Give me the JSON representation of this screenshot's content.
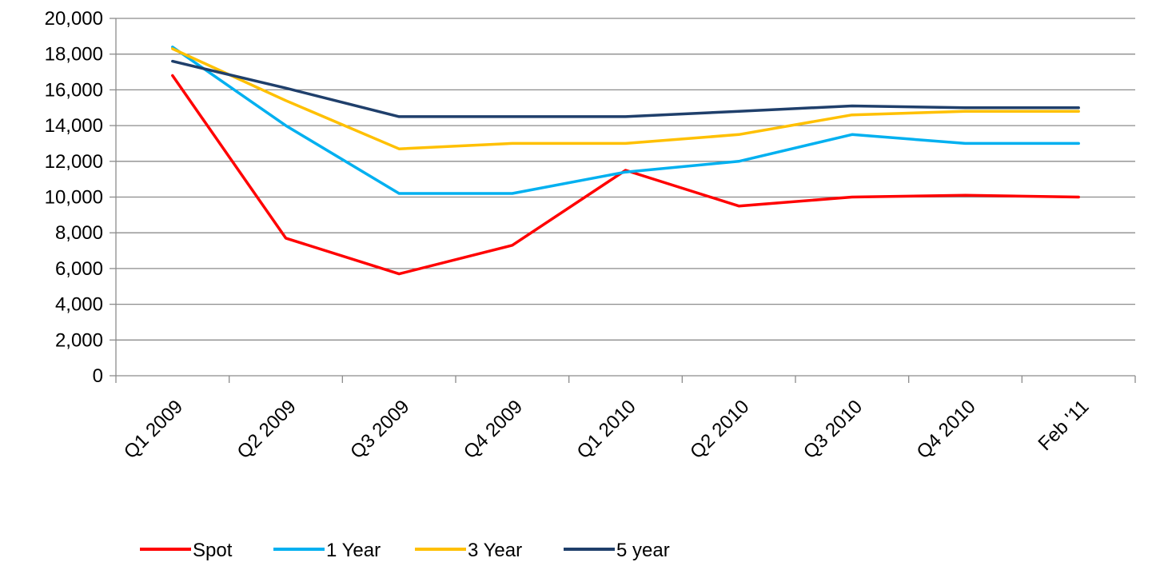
{
  "chart_data": {
    "type": "line",
    "title": "",
    "xlabel": "",
    "ylabel": "",
    "categories": [
      "Q1 2009",
      "Q2 2009",
      "Q3 2009",
      "Q4 2009",
      "Q1 2010",
      "Q2 2010",
      "Q3 2010",
      "Q4 2010",
      "Feb '11"
    ],
    "ylim": [
      0,
      20000
    ],
    "yticks": [
      0,
      2000,
      4000,
      6000,
      8000,
      10000,
      12000,
      14000,
      16000,
      18000,
      20000
    ],
    "ytick_labels": [
      "0",
      "2,000",
      "4,000",
      "6,000",
      "8,000",
      "10,000",
      "12,000",
      "14,000",
      "16,000",
      "18,000",
      "20,000"
    ],
    "grid": "horizontal",
    "legend_position": "bottom",
    "series": [
      {
        "name": "Spot",
        "color": "#ff0000",
        "values": [
          16800,
          7700,
          5700,
          7300,
          11500,
          9500,
          10000,
          10100,
          10000
        ]
      },
      {
        "name": "1 Year",
        "color": "#00b0f0",
        "values": [
          18400,
          14000,
          10200,
          10200,
          11400,
          12000,
          13500,
          13000,
          13000
        ]
      },
      {
        "name": "3 Year",
        "color": "#ffc000",
        "values": [
          18300,
          15400,
          12700,
          13000,
          13000,
          13500,
          14600,
          14800,
          14800
        ]
      },
      {
        "name": "5 year",
        "color": "#1f3f6b",
        "values": [
          17600,
          16100,
          14500,
          14500,
          14500,
          14800,
          15100,
          15000,
          15000
        ]
      }
    ]
  }
}
